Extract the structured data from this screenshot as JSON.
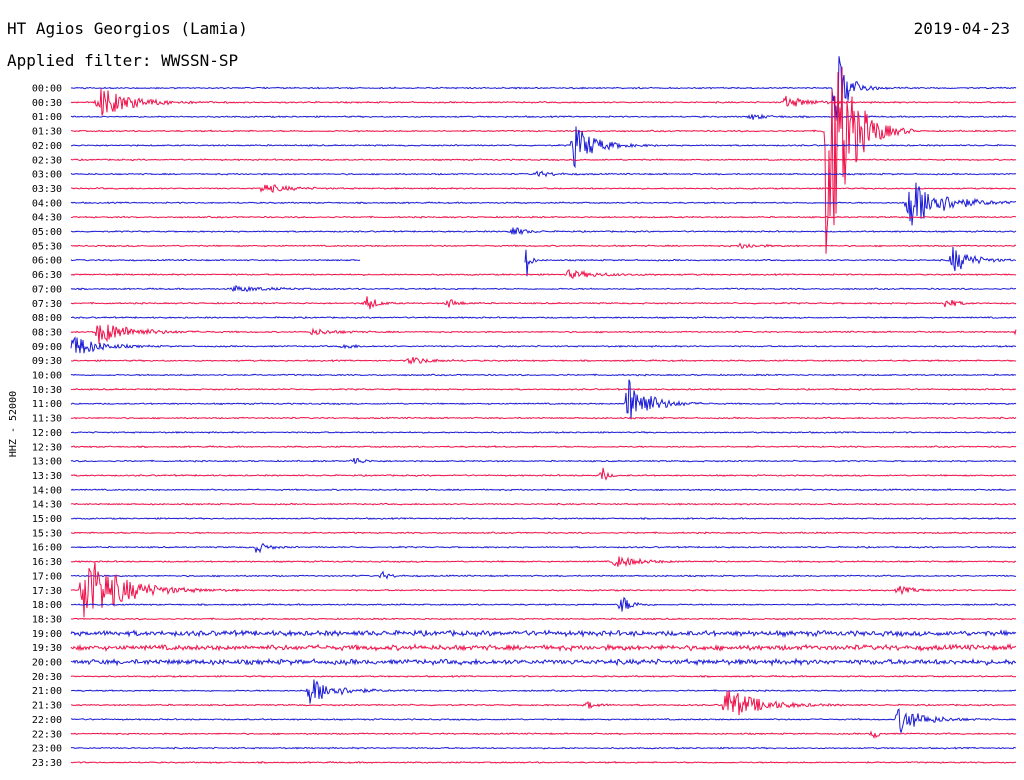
{
  "header": {
    "station": "HT Agios Georgios (Lamia)",
    "date": "2019-04-23",
    "filter": "Applied filter: WWSSN-SP"
  },
  "chart_data": {
    "type": "helicorder",
    "channel_label": "HHZ - 52000",
    "row_labels": [
      "00:00",
      "00:30",
      "01:00",
      "01:30",
      "02:00",
      "02:30",
      "03:00",
      "03:30",
      "04:00",
      "04:30",
      "05:00",
      "05:30",
      "06:00",
      "06:30",
      "07:00",
      "07:30",
      "08:00",
      "08:30",
      "09:00",
      "09:30",
      "10:00",
      "10:30",
      "11:00",
      "11:30",
      "12:00",
      "12:30",
      "13:00",
      "13:30",
      "14:00",
      "14:30",
      "15:00",
      "15:30",
      "16:00",
      "16:30",
      "17:00",
      "17:30",
      "18:00",
      "18:30",
      "19:00",
      "19:30",
      "20:00",
      "20:30",
      "21:00",
      "21:30",
      "22:00",
      "22:30",
      "23:00",
      "23:30"
    ],
    "row_minutes": 30,
    "colors": [
      "#1a1ad6",
      "#f0104a"
    ],
    "gaps": [
      {
        "row": 12,
        "from_min": 9.2,
        "to_min": 14.4
      }
    ],
    "events": [
      {
        "row": 1,
        "min": 0.8,
        "amp": 16,
        "dur": 2.0
      },
      {
        "row": 0,
        "min": 24.2,
        "amp": 42,
        "dur": 0.8
      },
      {
        "row": 1,
        "min": 22.6,
        "amp": 6,
        "dur": 1.5
      },
      {
        "row": 2,
        "min": 21.5,
        "amp": 3,
        "dur": 1.0
      },
      {
        "row": 3,
        "min": 23.9,
        "amp": 160,
        "dur": 1.3
      },
      {
        "row": 4,
        "min": 15.9,
        "amp": 22,
        "dur": 1.3
      },
      {
        "row": 6,
        "min": 14.7,
        "amp": 3,
        "dur": 1.0
      },
      {
        "row": 7,
        "min": 6.0,
        "amp": 5,
        "dur": 1.5
      },
      {
        "row": 8,
        "min": 26.5,
        "amp": 28,
        "dur": 2.0
      },
      {
        "row": 10,
        "min": 13.9,
        "amp": 6,
        "dur": 0.7
      },
      {
        "row": 11,
        "min": 21.2,
        "amp": 3,
        "dur": 1.0
      },
      {
        "row": 12,
        "min": 14.4,
        "amp": 18,
        "dur": 0.2
      },
      {
        "row": 12,
        "min": 27.9,
        "amp": 14,
        "dur": 1.2
      },
      {
        "row": 13,
        "min": 15.7,
        "amp": 4,
        "dur": 2.0
      },
      {
        "row": 14,
        "min": 5.1,
        "amp": 3,
        "dur": 2.0
      },
      {
        "row": 15,
        "min": 9.3,
        "amp": 9,
        "dur": 0.6
      },
      {
        "row": 15,
        "min": 11.9,
        "amp": 5,
        "dur": 0.6
      },
      {
        "row": 15,
        "min": 27.7,
        "amp": 6,
        "dur": 0.6
      },
      {
        "row": 17,
        "min": 0.8,
        "amp": 12,
        "dur": 2.0
      },
      {
        "row": 17,
        "min": 7.6,
        "amp": 3,
        "dur": 1.5
      },
      {
        "row": 17,
        "min": 30.0,
        "amp": 24,
        "dur": 0.6
      },
      {
        "row": 18,
        "min": 0.0,
        "amp": 12,
        "dur": 1.5
      },
      {
        "row": 18,
        "min": 8.6,
        "amp": 3,
        "dur": 0.6
      },
      {
        "row": 19,
        "min": 10.7,
        "amp": 4,
        "dur": 1.2
      },
      {
        "row": 22,
        "min": 17.6,
        "amp": 28,
        "dur": 1.3
      },
      {
        "row": 26,
        "min": 8.9,
        "amp": 5,
        "dur": 0.5
      },
      {
        "row": 27,
        "min": 16.8,
        "amp": 8,
        "dur": 0.3
      },
      {
        "row": 32,
        "min": 5.8,
        "amp": 6,
        "dur": 0.7
      },
      {
        "row": 33,
        "min": 17.2,
        "amp": 6,
        "dur": 1.5
      },
      {
        "row": 34,
        "min": 9.8,
        "amp": 4,
        "dur": 0.5
      },
      {
        "row": 35,
        "min": 0.3,
        "amp": 40,
        "dur": 2.3
      },
      {
        "row": 35,
        "min": 26.2,
        "amp": 4,
        "dur": 1.0
      },
      {
        "row": 36,
        "min": 17.4,
        "amp": 10,
        "dur": 0.6
      },
      {
        "row": 42,
        "min": 7.5,
        "amp": 14,
        "dur": 1.6
      },
      {
        "row": 43,
        "min": 16.3,
        "amp": 4,
        "dur": 0.6
      },
      {
        "row": 43,
        "min": 20.7,
        "amp": 18,
        "dur": 2.0
      },
      {
        "row": 44,
        "min": 26.2,
        "amp": 14,
        "dur": 1.5
      },
      {
        "row": 45,
        "min": 25.4,
        "amp": 6,
        "dur": 0.3
      }
    ]
  }
}
